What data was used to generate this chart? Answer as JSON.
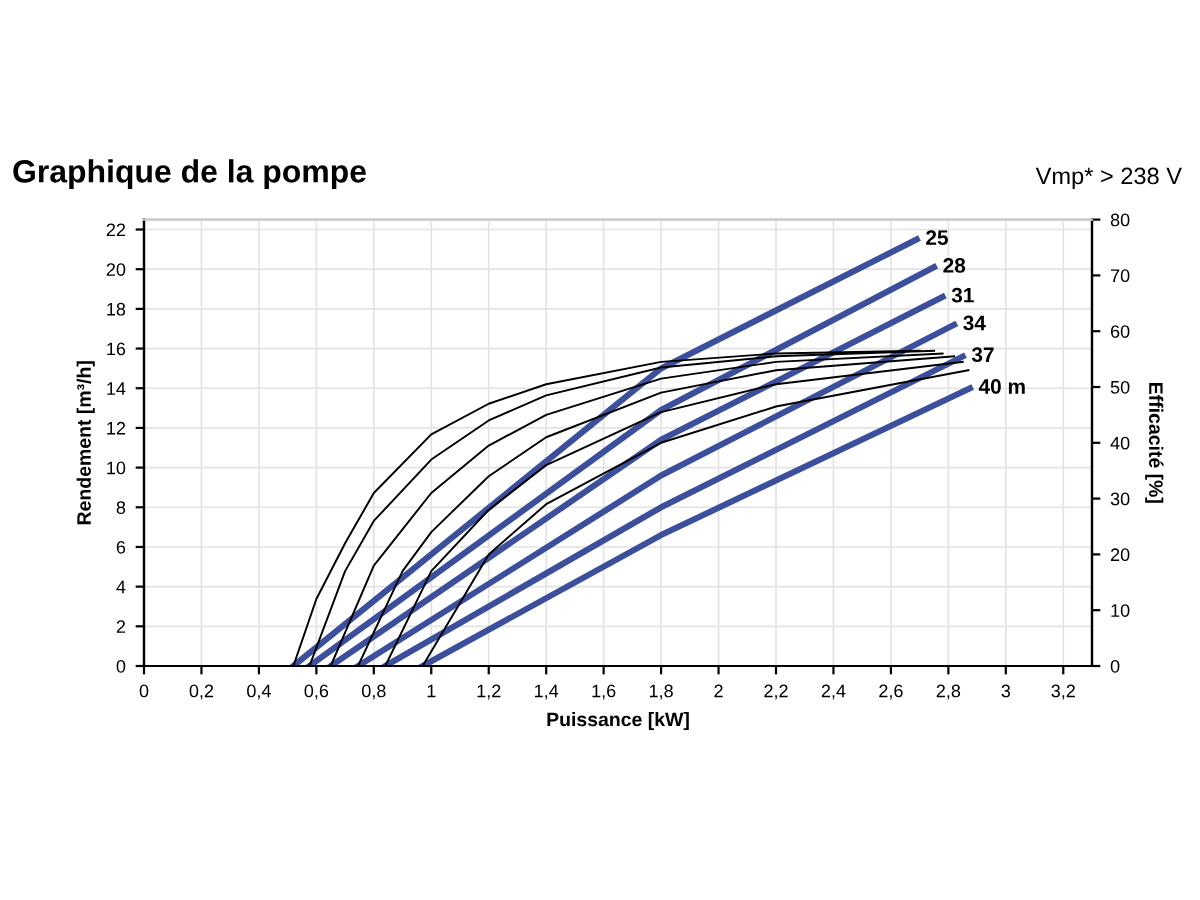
{
  "chart_data": {
    "type": "line",
    "title": "Graphique de la pompe",
    "subtitle": "Vmp* > 238 V",
    "xlabel": "Puissance [kW]",
    "ylabel": "Rendement [m³/h]",
    "y2label": "Efficacité [%]",
    "xlim": [
      0,
      3.3
    ],
    "xticks": [
      0,
      {
        "value": 0.2,
        "label": "0,2"
      },
      {
        "value": 0.4,
        "label": "0,4"
      },
      {
        "value": 0.6,
        "label": "0,6"
      },
      {
        "value": 0.8,
        "label": "0,8"
      },
      1,
      {
        "value": 1.2,
        "label": "1,2"
      },
      {
        "value": 1.4,
        "label": "1,4"
      },
      {
        "value": 1.6,
        "label": "1,6"
      },
      {
        "value": 1.8,
        "label": "1,8"
      },
      2,
      {
        "value": 2.2,
        "label": "2,2"
      },
      {
        "value": 2.4,
        "label": "2,4"
      },
      {
        "value": 2.6,
        "label": "2,6"
      },
      {
        "value": 2.8,
        "label": "2,8"
      },
      3,
      {
        "value": 3.2,
        "label": "3,2"
      }
    ],
    "ylim": [
      0,
      22.5
    ],
    "yticks": [
      0,
      2,
      4,
      6,
      8,
      10,
      12,
      14,
      16,
      18,
      20,
      22
    ],
    "y2lim": [
      0,
      80
    ],
    "y2ticks": [
      0,
      10,
      20,
      30,
      40,
      50,
      60,
      70,
      80
    ],
    "grid": true,
    "legend": false,
    "marker": "none",
    "line_style": "solid",
    "series": [
      {
        "color": "#000000",
        "axis": "y2",
        "x": [
          0.52,
          0.6,
          0.7,
          0.8,
          1.0,
          1.2,
          1.4,
          1.8,
          2.2,
          2.7
        ],
        "values": [
          0,
          12,
          22,
          31,
          41.5,
          47,
          50.5,
          54.5,
          56,
          56.5
        ]
      },
      {
        "color": "#000000",
        "axis": "y2",
        "x": [
          0.576,
          0.7,
          0.8,
          1.0,
          1.2,
          1.4,
          1.8,
          2.2,
          2.75
        ],
        "values": [
          0,
          17,
          26,
          37,
          44,
          48.5,
          53.5,
          55.5,
          56.5
        ]
      },
      {
        "color": "#000000",
        "axis": "y2",
        "x": [
          0.65,
          0.8,
          1.0,
          1.2,
          1.4,
          1.8,
          2.2,
          2.78
        ],
        "values": [
          0,
          18,
          31,
          39.5,
          45,
          51.5,
          54.5,
          56
        ]
      },
      {
        "color": "#000000",
        "axis": "y2",
        "x": [
          0.745,
          0.9,
          1.0,
          1.2,
          1.4,
          1.8,
          2.2,
          2.82
        ],
        "values": [
          0,
          17,
          24,
          34,
          41,
          49,
          53,
          55.5
        ]
      },
      {
        "color": "#000000",
        "axis": "y2",
        "x": [
          0.84,
          1.0,
          1.2,
          1.4,
          1.8,
          2.2,
          2.85
        ],
        "values": [
          0,
          17,
          28,
          36,
          45.5,
          50.5,
          54.5
        ]
      },
      {
        "color": "#000000",
        "axis": "y2",
        "x": [
          0.97,
          1.2,
          1.4,
          1.8,
          2.2,
          2.87
        ],
        "values": [
          0,
          20,
          29,
          40,
          46.5,
          53
        ]
      },
      {
        "name": "25",
        "color": "#3b4f9c",
        "x": [
          0.52,
          1.8,
          2.69
        ],
        "values": [
          0,
          15.0,
          21.5
        ]
      },
      {
        "name": "28",
        "color": "#3b4f9c",
        "x": [
          0.576,
          1.8,
          2.75
        ],
        "values": [
          0,
          12.9,
          20.1
        ]
      },
      {
        "name": "31",
        "color": "#3b4f9c",
        "x": [
          0.65,
          1.8,
          2.78
        ],
        "values": [
          0,
          11.4,
          18.6
        ]
      },
      {
        "name": "34",
        "color": "#3b4f9c",
        "x": [
          0.745,
          1.8,
          2.82
        ],
        "values": [
          0,
          9.6,
          17.2
        ]
      },
      {
        "name": "37",
        "color": "#3b4f9c",
        "x": [
          0.84,
          1.8,
          2.85
        ],
        "values": [
          0,
          8.0,
          15.6
        ]
      },
      {
        "name": "40 m",
        "color": "#3b4f9c",
        "x": [
          0.97,
          1.8,
          2.875
        ],
        "values": [
          0,
          6.6,
          14.0
        ]
      }
    ]
  }
}
